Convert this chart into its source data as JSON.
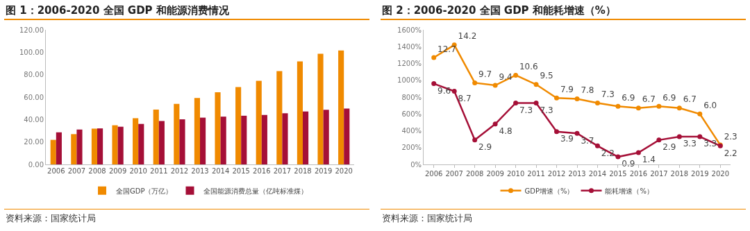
{
  "chart_data": [
    {
      "type": "bar",
      "title": "图 1：2006-2020 全国 GDP 和能源消费情况",
      "categories": [
        "2006",
        "2007",
        "2008",
        "2009",
        "2010",
        "2011",
        "2012",
        "2013",
        "2014",
        "2015",
        "2016",
        "2017",
        "2018",
        "2019",
        "2020"
      ],
      "series": [
        {
          "name": "全国GDP（万亿）",
          "color": "#f08a00",
          "values": [
            21.9,
            27.0,
            31.9,
            34.9,
            41.2,
            48.9,
            53.9,
            59.3,
            64.4,
            68.9,
            74.6,
            83.2,
            91.9,
            98.7,
            101.6
          ]
        },
        {
          "name": "全国能源消费总量（亿吨标准煤）",
          "color": "#a50f37",
          "values": [
            28.6,
            31.1,
            32.1,
            33.6,
            36.1,
            38.7,
            40.2,
            41.7,
            42.6,
            43.4,
            44.1,
            45.6,
            47.2,
            48.7,
            49.8
          ]
        }
      ],
      "ylim": [
        0,
        120
      ],
      "yticks": [
        {
          "value": 0,
          "label": "0.00"
        },
        {
          "value": 20,
          "label": "20.00"
        },
        {
          "value": 40,
          "label": "40.00"
        },
        {
          "value": 60,
          "label": "60.00"
        },
        {
          "value": 80,
          "label": "80.00"
        },
        {
          "value": 100,
          "label": "100.00"
        },
        {
          "value": 120,
          "label": "120.00"
        }
      ],
      "grid": false,
      "legend": "bottom",
      "annotations": [
        "资料来源：国家统计局"
      ]
    },
    {
      "type": "line",
      "title": "图 2：2006-2020 全国 GDP 和能耗增速（%）",
      "categories": [
        "2006",
        "2007",
        "2008",
        "2009",
        "2010",
        "2011",
        "2012",
        "2013",
        "2014",
        "2015",
        "2016",
        "2017",
        "2018",
        "2019",
        "2020"
      ],
      "series": [
        {
          "name": "GDP增速（%）",
          "color": "#f08a00",
          "values": [
            12.7,
            14.2,
            9.7,
            9.4,
            10.6,
            9.5,
            7.9,
            7.8,
            7.3,
            6.9,
            6.7,
            6.9,
            6.7,
            6.0,
            2.3
          ],
          "value_labels": [
            "12.7",
            "14.2",
            "9.7",
            "9.4",
            "10.6",
            "9.5",
            "7.9",
            "7.8",
            "7.3",
            "6.9",
            "6.7",
            "6.9",
            "6.7",
            "6.0",
            "2.3"
          ]
        },
        {
          "name": "能耗增速（%）",
          "color": "#a50f37",
          "values": [
            9.6,
            8.7,
            2.9,
            4.8,
            7.3,
            7.3,
            3.9,
            3.7,
            2.2,
            0.9,
            1.4,
            2.9,
            3.3,
            3.3,
            2.2
          ],
          "value_labels": [
            "9.6",
            "8.7",
            "2.9",
            "4.8",
            "7.3",
            "7.3",
            "3.9",
            "3.7",
            "2.2",
            "0.9",
            "1.4",
            "2.9",
            "3.3",
            "3.3",
            "2.2"
          ]
        }
      ],
      "ylim": [
        0,
        16
      ],
      "yticks": [
        {
          "value": 0,
          "label": "0%"
        },
        {
          "value": 2,
          "label": "200%"
        },
        {
          "value": 4,
          "label": "400%"
        },
        {
          "value": 6,
          "label": "600%"
        },
        {
          "value": 8,
          "label": "800%"
        },
        {
          "value": 10,
          "label": "1000%"
        },
        {
          "value": 12,
          "label": "1200%"
        },
        {
          "value": 14,
          "label": "1400%"
        },
        {
          "value": 16,
          "label": "1600%"
        }
      ],
      "grid": false,
      "legend": "bottom",
      "marker": "circle",
      "line_style": "solid",
      "annotations": [
        "资料来源：国家统计局"
      ]
    }
  ]
}
